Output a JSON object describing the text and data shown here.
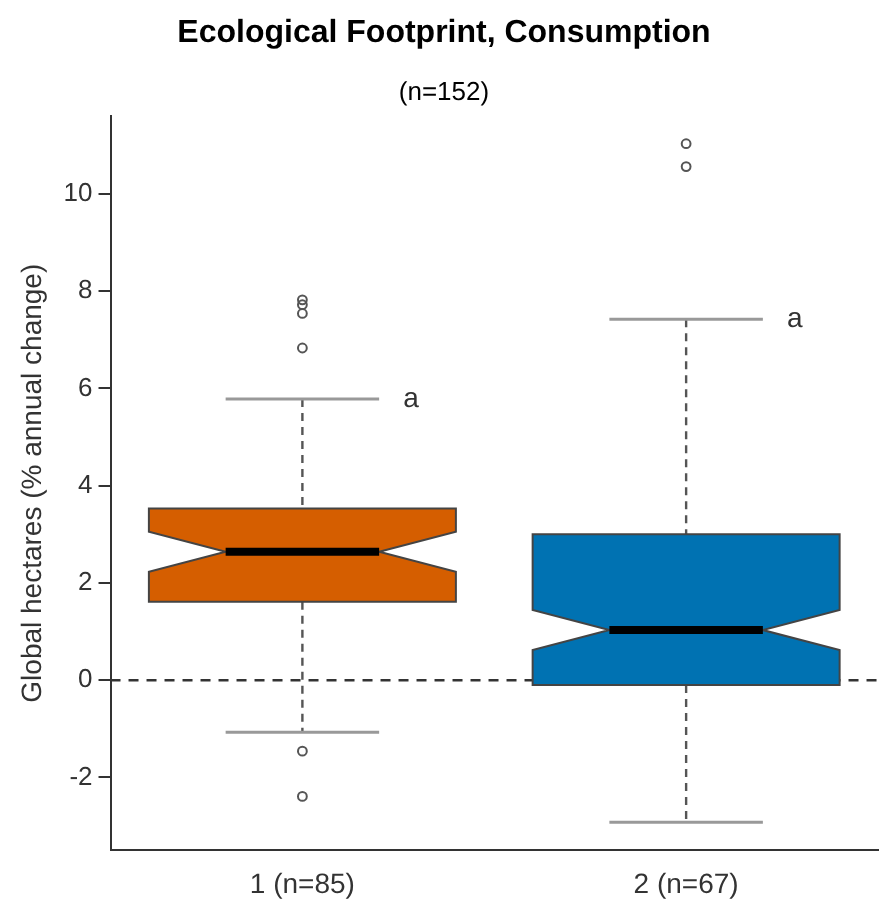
{
  "chart_data": {
    "type": "box",
    "title": "Ecological Footprint, Consumption",
    "subtitle": "(n=152)",
    "ylabel": "Global hectares (% annual change)",
    "categories": [
      "1 (n=85)",
      "2 (n=67)"
    ],
    "colors": [
      "#d55e00",
      "#0072b2"
    ],
    "boxes": [
      {
        "low": -1.07,
        "q1": 1.61,
        "median": 2.64,
        "q3": 3.53,
        "high": 5.78,
        "outliers": [
          7.82,
          7.72,
          7.54,
          6.83,
          -1.46,
          -2.39
        ]
      },
      {
        "low": -2.92,
        "q1": -0.1,
        "median": 1.03,
        "q3": 3.0,
        "high": 7.42,
        "outliers": [
          11.03,
          10.56
        ]
      }
    ],
    "ylim": [
      -3.5,
      11.6
    ],
    "yticks": [
      -2,
      0,
      2,
      4,
      6,
      8,
      10
    ],
    "ref_lines": [
      {
        "axis": "y",
        "value": 0,
        "line_style": "dashed",
        "color": "#333333"
      }
    ],
    "annotations": [
      "a",
      "a"
    ],
    "legend": false,
    "grid": false
  }
}
